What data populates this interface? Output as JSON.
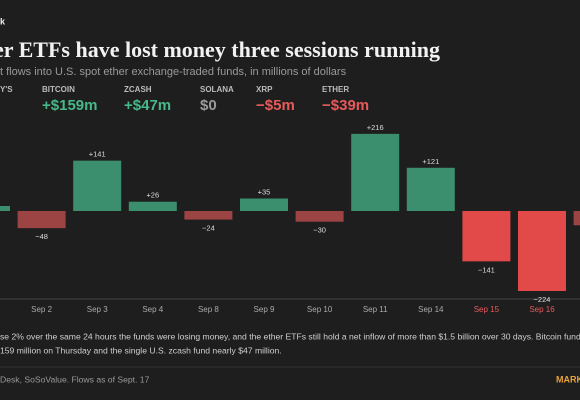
{
  "brand": "k",
  "stats": [
    {
      "label": "Y'S",
      "value": null,
      "color": "#9a9a9a"
    },
    {
      "label": "BITCOIN",
      "value": "+$159m",
      "color": "#46b88a"
    },
    {
      "label": "ZCASH",
      "value": "+$47m",
      "color": "#46b88a"
    },
    {
      "label": "SOLANA",
      "value": "$0",
      "color": "#9a9a9a"
    },
    {
      "label": "XRP",
      "value": "−$5m",
      "color": "#e85a5a"
    },
    {
      "label": "ETHER",
      "value": "−$39m",
      "color": "#e85a5a"
    }
  ],
  "chart_data": {
    "type": "bar",
    "title": "er ETFs have lost money three sessions running",
    "subtitle": "t flows into U.S. spot ether exchange-traded funds, in millions of dollars",
    "categories": [
      null,
      "Sep 2",
      "Sep 3",
      "Sep 4",
      "Sep 8",
      "Sep 9",
      "Sep 10",
      "Sep 11",
      "Sep 14",
      "Sep 15",
      "Sep 16",
      null
    ],
    "values": [
      14,
      -48,
      141,
      26,
      -24,
      35,
      -30,
      216,
      121,
      -141,
      -224,
      -40
    ],
    "value_labels": [
      null,
      "−48",
      "+141",
      "+26",
      "−24",
      "+35",
      "−30",
      "+216",
      "+121",
      "−141",
      "−224",
      null
    ],
    "colors": [
      "#3b8f6e",
      "#9c4444",
      "#3b8f6e",
      "#3b8f6e",
      "#9c4444",
      "#3b8f6e",
      "#9c4444",
      "#3b8f6e",
      "#3b8f6e",
      "#e24a4a",
      "#e24a4a",
      "#9c4444"
    ],
    "label_colors": [
      "#aaaaaa",
      "#aaaaaa",
      "#aaaaaa",
      "#aaaaaa",
      "#aaaaaa",
      "#aaaaaa",
      "#aaaaaa",
      "#aaaaaa",
      "#aaaaaa",
      "#e85a5a",
      "#e85a5a",
      "#aaaaaa"
    ]
  },
  "note": [
    "se 2% over the same 24 hours the funds were losing money, and the ether ETFs still hold a net inflow of more than $1.5 billion over 30 days. Bitcoin funds too",
    "159 million on Thursday and the single U.S. zcash fund nearly $47 million."
  ],
  "source": "Desk, SoSoValue. Flows as of Sept. 17",
  "logo": "MARK"
}
